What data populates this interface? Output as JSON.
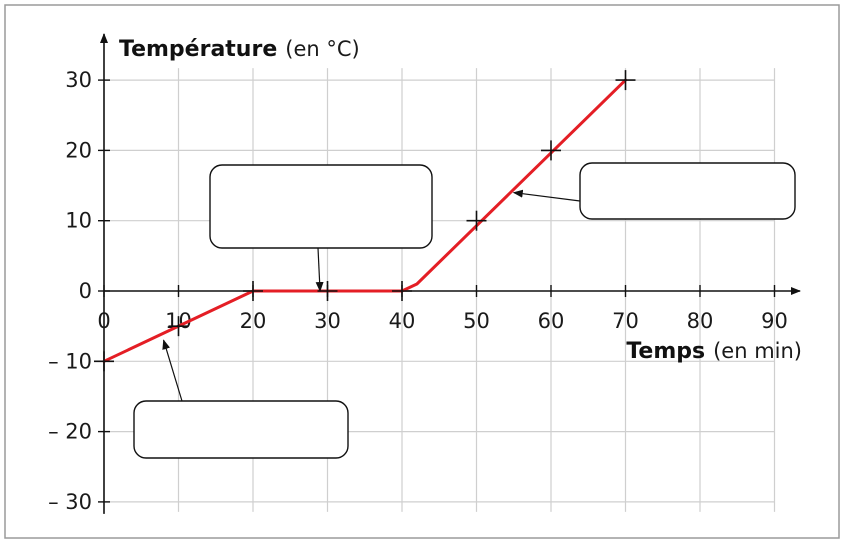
{
  "chart_data": {
    "type": "line",
    "ylabel": "Température",
    "yunit": "(en °C)",
    "xlabel": "Temps",
    "xunit": "(en min)",
    "xlim": [
      0,
      90
    ],
    "ylim": [
      -30,
      30
    ],
    "xticks": [
      0,
      10,
      20,
      30,
      40,
      50,
      60,
      70,
      80,
      90
    ],
    "yticks": [
      -30,
      -20,
      -10,
      0,
      10,
      20,
      30
    ],
    "ytick_labels": [
      "– 30",
      "– 20",
      "– 10",
      "0",
      "10",
      "20",
      "30"
    ],
    "grid": true,
    "series": [
      {
        "color": "#e41e25",
        "x": [
          0,
          20,
          23,
          37,
          40,
          42,
          70
        ],
        "values": [
          -10,
          0,
          0,
          0,
          0,
          1,
          30
        ]
      }
    ],
    "markers": {
      "x": [
        0,
        10,
        20,
        30,
        40,
        50,
        60,
        70
      ],
      "y": [
        -10,
        -5,
        0,
        0,
        0,
        10,
        20,
        30
      ]
    },
    "annotation_boxes": [
      {
        "id": "phase-solid",
        "label": "",
        "target": [
          8,
          -7
        ]
      },
      {
        "id": "phase-melting",
        "label": "",
        "target": [
          29,
          0
        ]
      },
      {
        "id": "phase-liquid",
        "label": "",
        "target": [
          55,
          14
        ]
      }
    ]
  }
}
